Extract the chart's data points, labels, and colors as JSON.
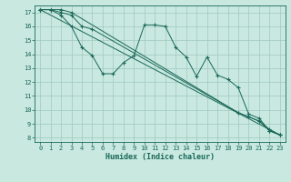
{
  "xlabel": "Humidex (Indice chaleur)",
  "bg_color": "#c8e8e0",
  "grid_color": "#a0c8c0",
  "line_color": "#1a6858",
  "xlim": [
    -0.5,
    23.5
  ],
  "ylim": [
    7.7,
    17.5
  ],
  "xticks": [
    0,
    1,
    2,
    3,
    4,
    5,
    6,
    7,
    8,
    9,
    10,
    11,
    12,
    13,
    14,
    15,
    16,
    17,
    18,
    19,
    20,
    21,
    22,
    23
  ],
  "yticks": [
    8,
    9,
    10,
    11,
    12,
    13,
    14,
    15,
    16,
    17
  ],
  "line1_x": [
    0,
    1,
    2,
    3,
    4,
    5,
    6,
    7,
    8,
    9,
    10,
    11,
    12,
    13,
    14,
    15,
    16,
    17,
    18,
    19,
    20,
    21,
    22,
    23
  ],
  "line1_y": [
    17.2,
    17.2,
    16.8,
    16.0,
    14.5,
    13.9,
    12.6,
    12.6,
    13.4,
    13.9,
    16.1,
    16.1,
    16.0,
    14.5,
    13.8,
    12.4,
    13.8,
    12.5,
    12.2,
    11.6,
    9.7,
    9.4,
    8.5,
    8.2
  ],
  "line2_x": [
    0,
    1,
    2,
    3,
    19,
    20,
    21,
    22,
    23
  ],
  "line2_y": [
    17.2,
    17.2,
    17.2,
    17.0,
    9.8,
    9.5,
    9.2,
    8.6,
    8.2
  ],
  "line3_x": [
    0,
    23
  ],
  "line3_y": [
    17.2,
    8.2
  ],
  "line4_x": [
    0,
    1,
    2,
    3,
    4,
    5,
    19,
    20,
    21,
    22,
    23
  ],
  "line4_y": [
    17.2,
    17.2,
    17.0,
    16.8,
    16.0,
    15.8,
    9.8,
    9.5,
    9.2,
    8.5,
    8.2
  ]
}
